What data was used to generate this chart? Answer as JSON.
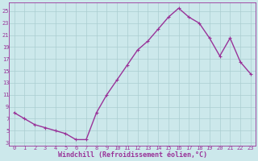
{
  "x": [
    0,
    1,
    2,
    3,
    4,
    5,
    6,
    7,
    8,
    9,
    10,
    11,
    12,
    13,
    14,
    15,
    16,
    17,
    18,
    19,
    20,
    21,
    22,
    23
  ],
  "y": [
    8,
    7,
    6,
    5.5,
    5,
    4.5,
    3.5,
    3.5,
    8,
    11,
    13.5,
    16,
    18.5,
    20,
    22,
    24,
    25.5,
    24,
    23,
    20.5,
    17.5,
    20.5,
    16.5,
    14.5
  ],
  "line_color": "#993399",
  "marker": "+",
  "xlabel": "Windchill (Refroidissement éolien,°C)",
  "xlabel_color": "#993399",
  "bg_color": "#cce8eb",
  "grid_color": "#aacdd0",
  "tick_color": "#993399",
  "ylim": [
    2.5,
    26.5
  ],
  "yticks": [
    3,
    5,
    7,
    9,
    11,
    13,
    15,
    17,
    19,
    21,
    23,
    25
  ],
  "xlim": [
    -0.5,
    23.5
  ],
  "xticks": [
    0,
    1,
    2,
    3,
    4,
    5,
    6,
    7,
    8,
    9,
    10,
    11,
    12,
    13,
    14,
    15,
    16,
    17,
    18,
    19,
    20,
    21,
    22,
    23
  ],
  "xtick_labels": [
    "0",
    "1",
    "2",
    "3",
    "4",
    "5",
    "6",
    "7",
    "8",
    "9",
    "10",
    "11",
    "12",
    "13",
    "14",
    "15",
    "16",
    "17",
    "18",
    "19",
    "20",
    "21",
    "22",
    "23"
  ],
  "ytick_labels": [
    "3",
    "5",
    "7",
    "9",
    "11",
    "13",
    "15",
    "17",
    "19",
    "21",
    "23",
    "25"
  ],
  "spine_color": "#993399",
  "markersize": 3,
  "linewidth": 1.0,
  "xlabel_fontsize": 6.0,
  "tick_fontsize": 5.0
}
